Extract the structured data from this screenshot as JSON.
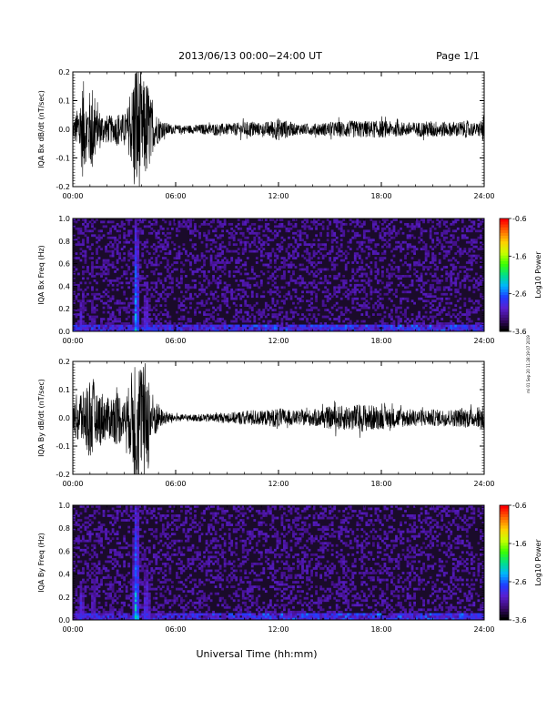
{
  "header": {
    "title": "2013/06/13  00:00−24:00 UT",
    "page": "Page 1/1"
  },
  "footer": {
    "xlabel": "Universal Time (hh:mm)",
    "side_note": "mi 01 Sep 20 11:28:19 07 2019"
  },
  "colors": {
    "background": "#000000",
    "trace": "#000000",
    "spectrogram_base": "#1a0b2a",
    "colormap": [
      "#000000",
      "#3a0a6e",
      "#5a1fd0",
      "#1f3bff",
      "#00b4ff",
      "#00e08a",
      "#3cff00",
      "#c8ff00",
      "#ffd000",
      "#ff6a00",
      "#ff0000"
    ]
  },
  "chart_data": [
    {
      "type": "line",
      "id": "bx_wave",
      "ylabel": "IQA Bx dB/dt (nT/sec)",
      "x_range": [
        0,
        24
      ],
      "xticks": [
        "00:00",
        "06:00",
        "12:00",
        "18:00",
        "24:00"
      ],
      "ylim": [
        -0.2,
        0.2
      ],
      "yticks": [
        "-0.2",
        "-0.1",
        "0.0",
        "0.1",
        "0.2"
      ],
      "envelope": {
        "x_hours": [
          0,
          0.2,
          0.4,
          0.6,
          0.8,
          1.0,
          1.2,
          1.4,
          1.6,
          1.8,
          2.0,
          2.2,
          2.4,
          2.6,
          2.8,
          3.0,
          3.2,
          3.4,
          3.6,
          3.8,
          4.0,
          4.2,
          4.4,
          4.6,
          4.8,
          5.0,
          5.2,
          5.6,
          6.0,
          7.0,
          8.0,
          9.0,
          10.0,
          10.5,
          11.0,
          11.5,
          12.0,
          13.0,
          14.0,
          15.0,
          16.0,
          17.0,
          18.0,
          19.0,
          20.0,
          21.0,
          22.0,
          23.0,
          23.6,
          24.0
        ],
        "amplitude": [
          0.03,
          0.06,
          0.1,
          0.18,
          0.1,
          0.14,
          0.17,
          0.06,
          0.07,
          0.05,
          0.05,
          0.05,
          0.04,
          0.06,
          0.06,
          0.05,
          0.08,
          0.12,
          0.25,
          0.25,
          0.16,
          0.18,
          0.17,
          0.09,
          0.06,
          0.05,
          0.03,
          0.02,
          0.015,
          0.015,
          0.02,
          0.02,
          0.025,
          0.03,
          0.02,
          0.03,
          0.04,
          0.02,
          0.02,
          0.025,
          0.03,
          0.03,
          0.03,
          0.025,
          0.025,
          0.03,
          0.025,
          0.03,
          0.02,
          0.05
        ]
      }
    },
    {
      "type": "heatmap",
      "id": "bx_spec",
      "ylabel": "IQA Bx Freq (Hz)",
      "x_range": [
        0,
        24
      ],
      "xticks": [
        "00:00",
        "06:00",
        "12:00",
        "18:00",
        "24:00"
      ],
      "ylim": [
        0,
        1.0
      ],
      "yticks": [
        "0.0",
        "0.2",
        "0.4",
        "0.6",
        "0.8",
        "1.0"
      ],
      "colorbar": {
        "label": "Log10 Power",
        "ticks": [
          "-0.6",
          "-1.6",
          "-2.6",
          "-3.6"
        ],
        "range": [
          -3.6,
          -0.6
        ]
      },
      "events": [
        {
          "t": 0.5,
          "w": 0.35,
          "fmax": 0.35,
          "power": -2.6
        },
        {
          "t": 1.2,
          "w": 0.25,
          "fmax": 0.55,
          "power": -2.8
        },
        {
          "t": 2.3,
          "w": 0.15,
          "fmax": 0.4,
          "power": -3.0
        },
        {
          "t": 3.7,
          "w": 0.25,
          "fmax": 1.0,
          "power": -1.9
        },
        {
          "t": 4.3,
          "w": 0.45,
          "fmax": 0.45,
          "power": -2.6
        },
        {
          "t": 5.0,
          "w": 0.3,
          "fmax": 0.15,
          "power": -3.0
        }
      ]
    },
    {
      "type": "line",
      "id": "by_wave",
      "ylabel": "IQA By dB/dt (nT/sec)",
      "x_range": [
        0,
        24
      ],
      "xticks": [
        "00:00",
        "06:00",
        "12:00",
        "18:00",
        "24:00"
      ],
      "ylim": [
        -0.2,
        0.2
      ],
      "yticks": [
        "-0.2",
        "-0.1",
        "0.0",
        "0.1",
        "0.2"
      ],
      "envelope": {
        "x_hours": [
          0,
          0.2,
          0.4,
          0.6,
          0.8,
          1.0,
          1.2,
          1.4,
          1.6,
          1.8,
          2.0,
          2.2,
          2.4,
          2.6,
          2.8,
          3.0,
          3.2,
          3.4,
          3.6,
          3.8,
          4.0,
          4.2,
          4.4,
          4.6,
          4.8,
          5.0,
          5.2,
          5.6,
          6.0,
          7.0,
          8.0,
          9.0,
          10.0,
          10.5,
          11.0,
          11.5,
          12.0,
          13.0,
          14.0,
          15.0,
          16.0,
          17.0,
          18.0,
          19.0,
          20.0,
          21.0,
          22.0,
          23.0,
          23.6,
          24.0
        ],
        "amplitude": [
          0.04,
          0.08,
          0.12,
          0.09,
          0.13,
          0.15,
          0.14,
          0.08,
          0.1,
          0.09,
          0.07,
          0.08,
          0.09,
          0.1,
          0.09,
          0.06,
          0.1,
          0.15,
          0.25,
          0.25,
          0.18,
          0.2,
          0.19,
          0.1,
          0.07,
          0.05,
          0.03,
          0.02,
          0.012,
          0.012,
          0.015,
          0.018,
          0.025,
          0.03,
          0.025,
          0.03,
          0.035,
          0.025,
          0.03,
          0.04,
          0.045,
          0.05,
          0.04,
          0.035,
          0.03,
          0.03,
          0.03,
          0.035,
          0.03,
          0.07
        ]
      }
    },
    {
      "type": "heatmap",
      "id": "by_spec",
      "ylabel": "IQA By Freq (Hz)",
      "x_range": [
        0,
        24
      ],
      "xticks": [
        "00:00",
        "06:00",
        "12:00",
        "18:00",
        "24:00"
      ],
      "ylim": [
        0,
        1.0
      ],
      "yticks": [
        "0.0",
        "0.2",
        "0.4",
        "0.6",
        "0.8",
        "1.0"
      ],
      "colorbar": {
        "label": "Log10 Power",
        "ticks": [
          "-0.6",
          "-1.6",
          "-2.6",
          "-3.6"
        ],
        "range": [
          -3.6,
          -0.6
        ]
      },
      "events": [
        {
          "t": 0.5,
          "w": 0.35,
          "fmax": 0.4,
          "power": -2.5
        },
        {
          "t": 1.2,
          "w": 0.25,
          "fmax": 0.6,
          "power": -2.7
        },
        {
          "t": 2.3,
          "w": 0.2,
          "fmax": 0.45,
          "power": -2.9
        },
        {
          "t": 3.7,
          "w": 0.3,
          "fmax": 1.0,
          "power": -1.8
        },
        {
          "t": 4.3,
          "w": 0.45,
          "fmax": 0.5,
          "power": -2.5
        },
        {
          "t": 5.0,
          "w": 0.3,
          "fmax": 0.2,
          "power": -2.9
        },
        {
          "t": 10.2,
          "w": 0.4,
          "fmax": 0.2,
          "power": -3.0
        }
      ]
    }
  ]
}
